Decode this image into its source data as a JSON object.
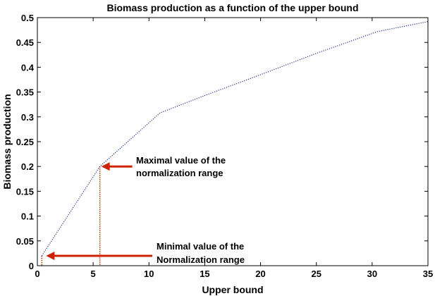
{
  "chart_data": {
    "type": "line",
    "title": "Biomass production as a function of the upper bound",
    "xlabel": "Upper bound",
    "ylabel": "Biomass production",
    "xlim": [
      0,
      35
    ],
    "ylim": [
      0,
      0.5
    ],
    "xticks": [
      0,
      5,
      10,
      15,
      20,
      25,
      30,
      35
    ],
    "yticks": [
      0,
      0.05,
      0.1,
      0.15,
      0.2,
      0.25,
      0.3,
      0.35,
      0.4,
      0.45,
      0.5
    ],
    "xtick_labels": [
      "0",
      "5",
      "10",
      "15",
      "20",
      "25",
      "30",
      "35"
    ],
    "ytick_labels": [
      "0",
      "0.05",
      "0.1",
      "0.15",
      "0.2",
      "0.25",
      "0.3",
      "0.35",
      "0.4",
      "0.45",
      "0.5"
    ],
    "grid": false,
    "series": [
      {
        "color": "#1f2f8f",
        "style": "dotted",
        "x": [
          0.4,
          5.6,
          11,
          15,
          20,
          25,
          30.5,
          35
        ],
        "y": [
          0.02,
          0.2,
          0.308,
          0.343,
          0.385,
          0.428,
          0.472,
          0.492
        ]
      }
    ],
    "annotations": [
      {
        "line1": "Maximal value of the",
        "line2": "normalization range",
        "x": 5.6,
        "y": 0.2,
        "color": "#cc2200"
      },
      {
        "line1": "Minimal value of the",
        "line2": "Normalization range",
        "x": 0.4,
        "y": 0.02,
        "color": "#cc2200"
      }
    ]
  }
}
